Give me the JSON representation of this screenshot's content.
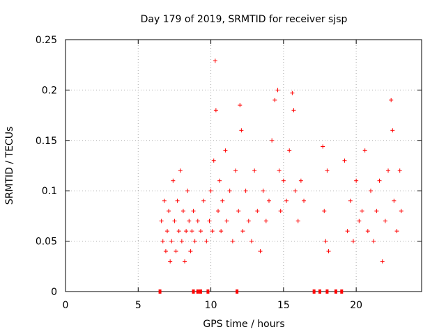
{
  "chart_data": {
    "type": "scatter",
    "title": "Day 179 of 2019, SRMTID for receiver sjsp",
    "xlabel": "GPS time / hours",
    "ylabel": "SRMTID / TECUs",
    "xlim": [
      0,
      24.5
    ],
    "ylim": [
      0,
      0.25
    ],
    "xticks": [
      0,
      5,
      10,
      15,
      20
    ],
    "xtick_labels": [
      "0",
      "5",
      "10",
      "15",
      "20"
    ],
    "yticks": [
      0,
      0.05,
      0.1,
      0.15,
      0.2,
      0.25
    ],
    "ytick_labels": [
      "0",
      "0.05",
      "0.1",
      "0.15",
      "0.2",
      "0.25"
    ],
    "grid": true,
    "marker": "+",
    "color": "#ff0000",
    "baseline_markers_at_zero": [
      6.5,
      8.8,
      9.1,
      9.3,
      9.8,
      11.8,
      17.1,
      17.5,
      18.0,
      18.6,
      19.0
    ],
    "series": [
      {
        "name": "SRMTID",
        "points": [
          [
            6.6,
            0.07
          ],
          [
            6.7,
            0.05
          ],
          [
            6.8,
            0.09
          ],
          [
            6.9,
            0.04
          ],
          [
            7.0,
            0.06
          ],
          [
            7.1,
            0.08
          ],
          [
            7.2,
            0.03
          ],
          [
            7.3,
            0.05
          ],
          [
            7.4,
            0.11
          ],
          [
            7.5,
            0.07
          ],
          [
            7.6,
            0.04
          ],
          [
            7.7,
            0.09
          ],
          [
            7.8,
            0.06
          ],
          [
            7.9,
            0.12
          ],
          [
            8.0,
            0.05
          ],
          [
            8.1,
            0.08
          ],
          [
            8.2,
            0.03
          ],
          [
            8.3,
            0.06
          ],
          [
            8.4,
            0.1
          ],
          [
            8.5,
            0.07
          ],
          [
            8.6,
            0.04
          ],
          [
            8.7,
            0.06
          ],
          [
            8.8,
            0.08
          ],
          [
            8.9,
            0.05
          ],
          [
            9.1,
            0.07
          ],
          [
            9.3,
            0.06
          ],
          [
            9.5,
            0.09
          ],
          [
            9.7,
            0.05
          ],
          [
            9.9,
            0.07
          ],
          [
            10.0,
            0.1
          ],
          [
            10.1,
            0.06
          ],
          [
            10.2,
            0.13
          ],
          [
            10.3,
            0.229
          ],
          [
            10.35,
            0.18
          ],
          [
            10.5,
            0.08
          ],
          [
            10.6,
            0.11
          ],
          [
            10.7,
            0.06
          ],
          [
            10.8,
            0.09
          ],
          [
            11.0,
            0.14
          ],
          [
            11.1,
            0.07
          ],
          [
            11.3,
            0.1
          ],
          [
            11.5,
            0.05
          ],
          [
            11.7,
            0.12
          ],
          [
            11.9,
            0.08
          ],
          [
            12.0,
            0.185
          ],
          [
            12.1,
            0.16
          ],
          [
            12.2,
            0.06
          ],
          [
            12.4,
            0.1
          ],
          [
            12.6,
            0.07
          ],
          [
            12.8,
            0.05
          ],
          [
            13.0,
            0.12
          ],
          [
            13.2,
            0.08
          ],
          [
            13.4,
            0.04
          ],
          [
            13.6,
            0.1
          ],
          [
            13.8,
            0.07
          ],
          [
            14.0,
            0.09
          ],
          [
            14.2,
            0.15
          ],
          [
            14.4,
            0.19
          ],
          [
            14.6,
            0.2
          ],
          [
            14.7,
            0.12
          ],
          [
            14.8,
            0.08
          ],
          [
            15.0,
            0.11
          ],
          [
            15.2,
            0.09
          ],
          [
            15.4,
            0.14
          ],
          [
            15.6,
            0.197
          ],
          [
            15.7,
            0.18
          ],
          [
            15.8,
            0.1
          ],
          [
            16.0,
            0.07
          ],
          [
            16.2,
            0.11
          ],
          [
            16.4,
            0.09
          ],
          [
            17.7,
            0.144
          ],
          [
            17.8,
            0.08
          ],
          [
            17.9,
            0.05
          ],
          [
            18.0,
            0.12
          ],
          [
            18.1,
            0.04
          ],
          [
            19.2,
            0.13
          ],
          [
            19.4,
            0.06
          ],
          [
            19.6,
            0.09
          ],
          [
            19.8,
            0.05
          ],
          [
            20.0,
            0.11
          ],
          [
            20.2,
            0.07
          ],
          [
            20.4,
            0.08
          ],
          [
            20.6,
            0.14
          ],
          [
            20.8,
            0.06
          ],
          [
            21.0,
            0.1
          ],
          [
            21.2,
            0.05
          ],
          [
            21.4,
            0.08
          ],
          [
            21.6,
            0.11
          ],
          [
            21.8,
            0.03
          ],
          [
            22.0,
            0.07
          ],
          [
            22.2,
            0.12
          ],
          [
            22.4,
            0.19
          ],
          [
            22.5,
            0.16
          ],
          [
            22.6,
            0.09
          ],
          [
            22.8,
            0.06
          ],
          [
            23.0,
            0.12
          ],
          [
            23.1,
            0.08
          ]
        ]
      }
    ]
  }
}
